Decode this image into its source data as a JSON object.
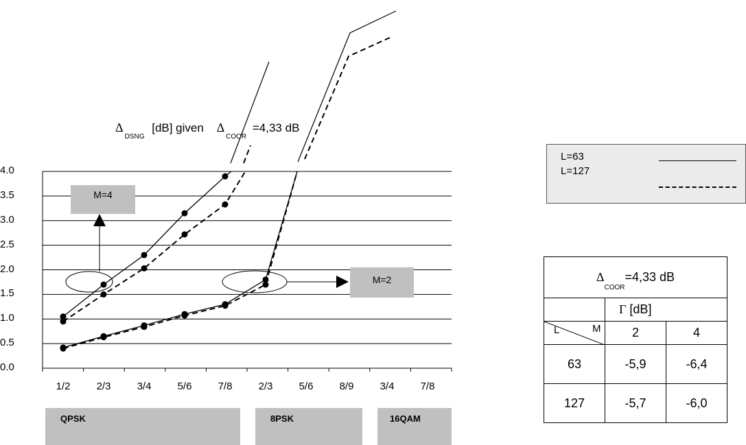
{
  "chart_data": {
    "type": "line",
    "title_parts": {
      "delta_symbol": "Δ",
      "dsng_sub": "DSNG",
      "dsng_text": "[dB] given",
      "coor_sub": "COOR",
      "coor_text": "=4,33 dB"
    },
    "categories": [
      "1/2",
      "2/3",
      "3/4",
      "5/6",
      "7/8",
      "2/3",
      "5/6",
      "8/9",
      "3/4",
      "7/8"
    ],
    "yticks": [
      "4.0",
      "3.5",
      "3.0",
      "2.5",
      "2.0",
      "1.5",
      "1.0",
      "0.5",
      "0.0"
    ],
    "ylim": [
      0,
      4
    ],
    "grid": true,
    "legend_position": "right",
    "series": [
      {
        "group": "QPSK M=4",
        "style": "solid",
        "x": [
          0,
          1,
          2,
          3,
          4,
          4.15
        ],
        "y": [
          1.05,
          1.7,
          2.3,
          3.15,
          3.9,
          4.0
        ]
      },
      {
        "group": "QPSK M=4",
        "style": "dashed",
        "x": [
          0,
          1,
          2,
          3,
          4,
          4.5
        ],
        "y": [
          0.95,
          1.5,
          2.03,
          2.72,
          3.33,
          4.0
        ]
      },
      {
        "group": "M=2",
        "style": "solid",
        "x": [
          0,
          1,
          2,
          3,
          4,
          5,
          5.78
        ],
        "y": [
          0.42,
          0.65,
          0.87,
          1.1,
          1.3,
          1.8,
          4.0
        ]
      },
      {
        "group": "M=2",
        "style": "dashed",
        "x": [
          0,
          1,
          2,
          3,
          4,
          5,
          5.78
        ],
        "y": [
          0.4,
          0.63,
          0.84,
          1.07,
          1.27,
          1.7,
          4.0
        ]
      }
    ],
    "modulation_groups": [
      "QPSK",
      "8PSK",
      "16QAM"
    ],
    "annotations": {
      "m4": "M=4",
      "m2": "M=2"
    },
    "legend": [
      {
        "label": "L=63",
        "style": "solid"
      },
      {
        "label": "L=127",
        "style": "dashed"
      }
    ]
  },
  "table": {
    "delta_symbol": "Δ",
    "coor_sub": "COOR",
    "coor_text": "=4,33 dB",
    "gamma_symbol": "Γ",
    "gamma_unit": "[dB]",
    "corner_l": "L",
    "corner_m": "M",
    "m_values": [
      "2",
      "4"
    ],
    "rows": [
      {
        "l": "63",
        "values": [
          "-5,9",
          "-6,4"
        ]
      },
      {
        "l": "127",
        "values": [
          "-5,7",
          "-6,0"
        ]
      }
    ]
  }
}
